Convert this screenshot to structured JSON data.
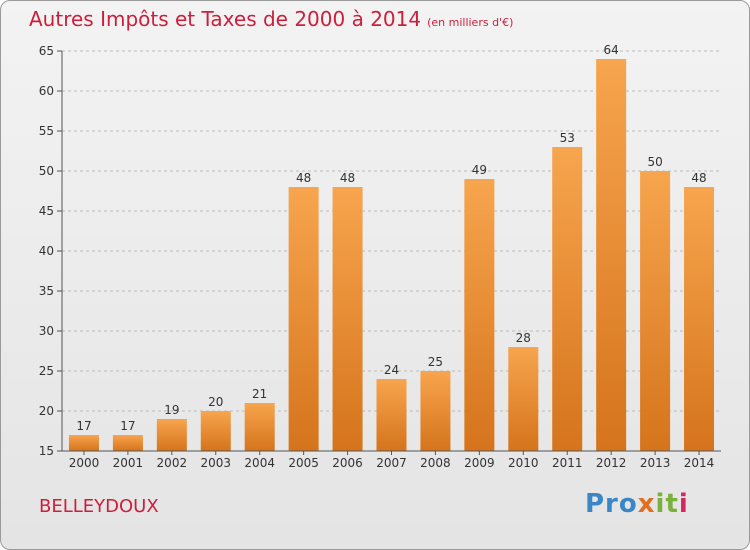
{
  "title": {
    "main": "Autres Impôts et Taxes de 2000 à 2014",
    "unit": "(en milliers d'€)"
  },
  "commune": "BELLEYDOUX",
  "logo": {
    "text": "Proxiti"
  },
  "colors": {
    "bar_light": "#f7a54e",
    "bar_dark": "#d5741c",
    "title": "#cc1f3c"
  },
  "chart_data": {
    "type": "bar",
    "title": "Autres Impôts et Taxes de 2000 à 2014",
    "categories": [
      "2000",
      "2001",
      "2002",
      "2003",
      "2004",
      "2005",
      "2006",
      "2007",
      "2008",
      "2009",
      "2010",
      "2011",
      "2012",
      "2013",
      "2014"
    ],
    "values": [
      17,
      17,
      19,
      20,
      21,
      48,
      48,
      24,
      25,
      49,
      28,
      53,
      64,
      50,
      48
    ],
    "ylim": [
      15,
      65
    ],
    "yticks": [
      15,
      20,
      25,
      30,
      35,
      40,
      45,
      50,
      55,
      60,
      65
    ],
    "grid": "horizontal dashed"
  }
}
